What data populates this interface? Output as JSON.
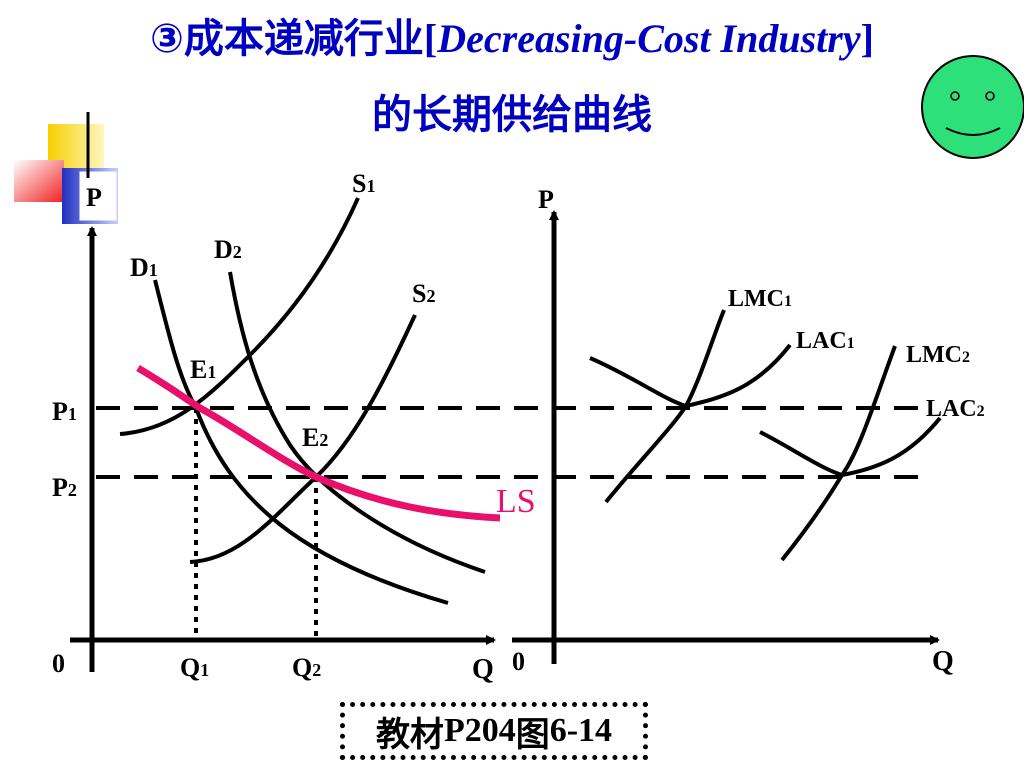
{
  "title": {
    "line1_prefix": "③成本递减行业",
    "line1_bracket_open": "[",
    "line1_english": "Decreasing-Cost Industry",
    "line1_bracket_close": "]",
    "line2": "的长期供给曲线"
  },
  "colors": {
    "title": "#0000c0",
    "ls_curve": "#e8106a",
    "smiley_fill": "#2ee07a",
    "deco_yellow": "#f8d000",
    "deco_red": "#f02020",
    "deco_blue": "#2030c0"
  },
  "icons": {
    "smiley": "smiley-face-icon",
    "corner_decoration": "corner-blocks-icon"
  },
  "left_graph": {
    "y_axis_label": "P",
    "x_axis_label": "Q",
    "origin_label": "0",
    "price_labels": {
      "p1": "P",
      "p1_sub": "1",
      "p2": "P",
      "p2_sub": "2"
    },
    "quantity_labels": {
      "q1": "Q",
      "q1_sub": "1",
      "q2": "Q",
      "q2_sub": "2"
    },
    "curve_labels": {
      "s1": "S",
      "s1_sub": "1",
      "s2": "S",
      "s2_sub": "2",
      "d1": "D",
      "d1_sub": "1",
      "d2": "D",
      "d2_sub": "2",
      "e1": "E",
      "e1_sub": "1",
      "e2": "E",
      "e2_sub": "2",
      "ls": "LS"
    }
  },
  "right_graph": {
    "y_axis_label": "P",
    "x_axis_label": "Q",
    "origin_label": "0",
    "curve_labels": {
      "lmc1": "LMC",
      "lmc1_sub": "1",
      "lac1": "LAC",
      "lac1_sub": "1",
      "lmc2": "LMC",
      "lmc2_sub": "2",
      "lac2": "LAC",
      "lac2_sub": "2"
    }
  },
  "caption": {
    "prefix": "教材",
    "ref": "P204",
    "mid": "图",
    "num": "6-14"
  }
}
